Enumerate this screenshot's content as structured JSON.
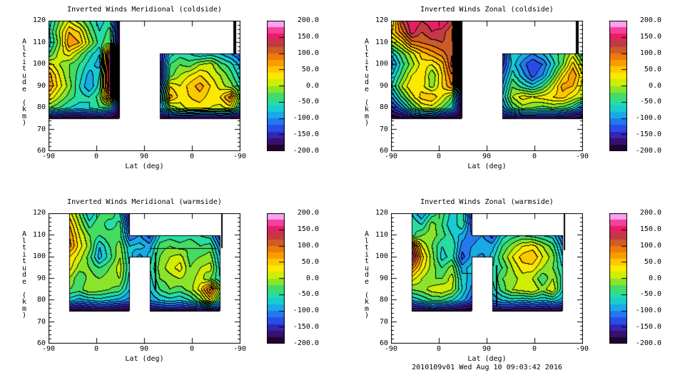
{
  "footer": "2010109v01 Wed Aug 10 09:03:42 2016",
  "axes": {
    "xlabel": "Lat (deg)",
    "ylabel": "Altitude (km)",
    "x_ticks": [
      "-90",
      "0",
      "90",
      "0",
      "-90"
    ],
    "y_ticks": [
      "120",
      "110",
      "100",
      "90",
      "80",
      "70",
      "60"
    ],
    "y_range_km": [
      60,
      120
    ]
  },
  "colorbar": {
    "labels": [
      "200.0",
      "150.0",
      "100.0",
      "50.0",
      "0.0",
      "-50.0",
      "-100.0",
      "-150.0",
      "-200.0"
    ],
    "label_values": [
      200,
      150,
      100,
      50,
      0,
      -50,
      -100,
      -150,
      -200
    ],
    "tick_values": [
      150,
      100,
      50,
      0,
      -50,
      -100,
      -150
    ],
    "min": -200,
    "max": 200,
    "band_step": 20
  },
  "palette": [
    "#200430",
    "#381070",
    "#3226b4",
    "#2a4ce6",
    "#2478ee",
    "#18aae6",
    "#18ccd2",
    "#28dca2",
    "#44dc62",
    "#8ce42a",
    "#d0ee04",
    "#fce800",
    "#fcc800",
    "#fa9c00",
    "#ee7a08",
    "#cc5c28",
    "#c23a44",
    "#e62064",
    "#f6409e",
    "#f8a4ee"
  ],
  "grid_alts_km": [
    120,
    115,
    110,
    105,
    100,
    95,
    90,
    85,
    80,
    77,
    75
  ],
  "chart_data": [
    {
      "type": "heatmap",
      "title": "Inverted Winds Meridional (coldside)",
      "xlabel": "Lat (deg)",
      "ylabel": "Altitude (km)",
      "x_cols": 20,
      "values": [
        [
          -70,
          -20,
          20,
          -10,
          -40,
          -70,
          -50,
          -200,
          null,
          null,
          null,
          null,
          null,
          null,
          null,
          null,
          null,
          null,
          null,
          -190
        ],
        [
          -60,
          0,
          60,
          40,
          -20,
          -60,
          -30,
          -200,
          null,
          null,
          null,
          null,
          null,
          null,
          null,
          null,
          null,
          null,
          null,
          -190
        ],
        [
          -70,
          -10,
          80,
          60,
          0,
          -50,
          -20,
          -200,
          null,
          null,
          null,
          null,
          null,
          null,
          null,
          null,
          null,
          null,
          null,
          -190
        ],
        [
          -40,
          10,
          30,
          -10,
          -50,
          -80,
          140,
          -200,
          null,
          null,
          null,
          -160,
          -70,
          -50,
          -60,
          -80,
          -70,
          -80,
          -100,
          -120
        ],
        [
          30,
          0,
          -20,
          -40,
          -70,
          -90,
          160,
          -200,
          null,
          null,
          null,
          -170,
          -40,
          -20,
          -30,
          0,
          10,
          -30,
          -50,
          -90
        ],
        [
          70,
          20,
          -20,
          -50,
          -90,
          -60,
          160,
          -200,
          null,
          null,
          null,
          -180,
          -30,
          0,
          20,
          40,
          20,
          0,
          -30,
          -70
        ],
        [
          80,
          30,
          -10,
          -60,
          -100,
          -50,
          150,
          -200,
          null,
          null,
          null,
          -150,
          40,
          20,
          50,
          70,
          40,
          10,
          -10,
          -50
        ],
        [
          40,
          0,
          -30,
          -50,
          -60,
          -30,
          100,
          -200,
          null,
          null,
          null,
          -120,
          70,
          30,
          40,
          50,
          30,
          40,
          90,
          -30
        ],
        [
          -20,
          -40,
          -60,
          -70,
          -60,
          -40,
          -50,
          -190,
          null,
          null,
          null,
          -100,
          -20,
          10,
          30,
          30,
          20,
          10,
          30,
          -60
        ],
        [
          -120,
          -140,
          -150,
          -150,
          -140,
          -130,
          -150,
          -200,
          null,
          null,
          null,
          -150,
          -120,
          -110,
          -110,
          -120,
          -120,
          -110,
          -120,
          -150
        ],
        [
          -185,
          -190,
          -195,
          -195,
          -190,
          -185,
          -190,
          -200,
          null,
          null,
          null,
          -190,
          -185,
          -185,
          -185,
          -185,
          -185,
          -185,
          -185,
          -190
        ]
      ],
      "marks": [
        {
          "t": "v",
          "x": 0.973,
          "a1": 120,
          "a2": 105,
          "w": 4
        }
      ]
    },
    {
      "type": "heatmap",
      "title": "Inverted Winds Zonal (coldside)",
      "xlabel": "Lat (deg)",
      "ylabel": "Altitude (km)",
      "x_cols": 20,
      "values": [
        [
          20,
          120,
          160,
          140,
          150,
          160,
          130,
          -200,
          null,
          null,
          null,
          null,
          null,
          null,
          null,
          null,
          null,
          null,
          null,
          -190
        ],
        [
          40,
          90,
          150,
          120,
          140,
          130,
          100,
          -200,
          null,
          null,
          null,
          null,
          null,
          null,
          null,
          null,
          null,
          null,
          null,
          -190
        ],
        [
          -10,
          30,
          90,
          100,
          110,
          120,
          110,
          -200,
          null,
          null,
          null,
          null,
          null,
          null,
          null,
          null,
          null,
          null,
          null,
          -190
        ],
        [
          -70,
          -30,
          10,
          50,
          70,
          90,
          120,
          -200,
          null,
          null,
          null,
          -170,
          -60,
          -80,
          -100,
          -80,
          -50,
          -30,
          10,
          -50
        ],
        [
          -110,
          -50,
          -10,
          30,
          20,
          50,
          130,
          -200,
          null,
          null,
          null,
          -150,
          -70,
          -110,
          -140,
          -120,
          -70,
          -20,
          50,
          -10
        ],
        [
          -80,
          -30,
          20,
          40,
          -20,
          40,
          100,
          -200,
          null,
          null,
          null,
          -120,
          -50,
          -90,
          -130,
          -100,
          -40,
          30,
          80,
          20
        ],
        [
          -60,
          0,
          40,
          30,
          -10,
          40,
          80,
          -200,
          null,
          null,
          null,
          -100,
          -20,
          -50,
          -70,
          -40,
          10,
          70,
          60,
          10
        ],
        [
          -100,
          -40,
          10,
          50,
          60,
          20,
          -20,
          -200,
          null,
          null,
          null,
          -80,
          0,
          30,
          20,
          30,
          40,
          50,
          20,
          0
        ],
        [
          -150,
          -100,
          -40,
          0,
          10,
          -20,
          -60,
          -200,
          null,
          null,
          null,
          -110,
          -40,
          -10,
          -20,
          -30,
          -20,
          -30,
          -50,
          -110
        ],
        [
          -180,
          -160,
          -120,
          -100,
          -110,
          -130,
          -150,
          -200,
          null,
          null,
          null,
          -150,
          -130,
          -110,
          -110,
          -120,
          -120,
          -130,
          -150,
          -170
        ],
        [
          -190,
          -190,
          -190,
          -190,
          -190,
          -190,
          -195,
          -200,
          null,
          null,
          null,
          -190,
          -185,
          -185,
          -185,
          -185,
          -185,
          -185,
          -185,
          -190
        ]
      ],
      "marks": [
        {
          "t": "v",
          "x": 0.973,
          "a1": 120,
          "a2": 105,
          "w": 4
        }
      ]
    },
    {
      "type": "heatmap",
      "title": "Inverted Winds Meridional (warmside)",
      "xlabel": "Lat (deg)",
      "ylabel": "Altitude (km)",
      "x_cols": 20,
      "values": [
        [
          null,
          null,
          30,
          -20,
          -80,
          -40,
          -20,
          -60,
          -160,
          null,
          null,
          null,
          null,
          null,
          null,
          null,
          null,
          null,
          null,
          null
        ],
        [
          null,
          null,
          60,
          0,
          -50,
          -20,
          -60,
          -30,
          -150,
          null,
          null,
          null,
          null,
          null,
          null,
          null,
          null,
          null,
          null,
          null
        ],
        [
          null,
          null,
          80,
          20,
          -20,
          -40,
          -20,
          -30,
          -120,
          -100,
          -130,
          -60,
          -50,
          -60,
          -50,
          -60,
          -70,
          -140,
          null,
          null
        ],
        [
          null,
          null,
          90,
          30,
          -10,
          -80,
          -40,
          -10,
          -80,
          -70,
          -90,
          -30,
          -20,
          -30,
          -20,
          -40,
          -30,
          -100,
          null,
          null
        ],
        [
          null,
          null,
          40,
          10,
          -30,
          -90,
          -50,
          0,
          -70,
          -110,
          -70,
          -20,
          0,
          10,
          -30,
          -20,
          -10,
          -80,
          null,
          null
        ],
        [
          null,
          null,
          30,
          -10,
          -20,
          -40,
          -20,
          10,
          -60,
          null,
          -60,
          -10,
          10,
          30,
          -20,
          0,
          10,
          -70,
          null,
          null
        ],
        [
          null,
          null,
          0,
          -40,
          -10,
          -20,
          -10,
          0,
          -70,
          null,
          -70,
          -20,
          -10,
          0,
          -10,
          10,
          -20,
          -60,
          null,
          null
        ],
        [
          null,
          null,
          -20,
          -30,
          0,
          -10,
          -20,
          -30,
          -80,
          null,
          -80,
          -40,
          -20,
          -30,
          -10,
          30,
          110,
          -10,
          null,
          null
        ],
        [
          null,
          null,
          -70,
          -90,
          -80,
          -70,
          -80,
          -90,
          -110,
          null,
          -100,
          -80,
          -70,
          -80,
          -60,
          -20,
          40,
          -60,
          null,
          null
        ],
        [
          null,
          null,
          -150,
          -160,
          -150,
          -140,
          -150,
          -160,
          -170,
          null,
          -150,
          -140,
          -130,
          -140,
          -130,
          -120,
          -90,
          -130,
          null,
          null
        ],
        [
          null,
          null,
          -190,
          -195,
          -190,
          -190,
          -190,
          -190,
          -195,
          null,
          -190,
          -185,
          -185,
          -185,
          -185,
          -185,
          -180,
          -190,
          null,
          null
        ]
      ],
      "marks": [
        {
          "t": "v",
          "x": 0.905,
          "a1": 120,
          "a2": 104,
          "w": 2
        },
        {
          "t": "h",
          "alt": 104,
          "x1": 0.53,
          "x2": 0.88,
          "w": 1
        },
        {
          "t": "v",
          "x": 0.56,
          "a1": 102,
          "a2": 84,
          "w": 2
        }
      ]
    },
    {
      "type": "heatmap",
      "title": "Inverted Winds Zonal (warmside)",
      "xlabel": "Lat (deg)",
      "ylabel": "Altitude (km)",
      "x_cols": 20,
      "values": [
        [
          null,
          null,
          -60,
          -100,
          -50,
          -30,
          -70,
          -50,
          -150,
          null,
          null,
          null,
          null,
          null,
          null,
          null,
          null,
          null,
          null,
          null
        ],
        [
          null,
          null,
          -40,
          -60,
          -10,
          -40,
          -80,
          -40,
          -140,
          null,
          null,
          null,
          null,
          null,
          null,
          null,
          null,
          null,
          null,
          null
        ],
        [
          null,
          null,
          -50,
          -20,
          -10,
          -30,
          -60,
          -90,
          -120,
          -100,
          -130,
          -70,
          -50,
          -40,
          -50,
          -60,
          -70,
          -130,
          null,
          null
        ],
        [
          null,
          null,
          130,
          20,
          -20,
          -60,
          -40,
          -110,
          -100,
          -80,
          -90,
          -40,
          -10,
          20,
          30,
          0,
          -30,
          -100,
          null,
          null
        ],
        [
          null,
          null,
          165,
          50,
          -10,
          -70,
          -50,
          -130,
          -90,
          -110,
          -70,
          -20,
          20,
          50,
          60,
          20,
          -10,
          -80,
          null,
          null
        ],
        [
          null,
          null,
          90,
          30,
          -10,
          -40,
          -10,
          -90,
          -70,
          null,
          -60,
          -40,
          0,
          30,
          30,
          0,
          -20,
          -60,
          null,
          null
        ],
        [
          null,
          null,
          30,
          0,
          -20,
          -20,
          10,
          -70,
          -90,
          null,
          -60,
          -20,
          -10,
          10,
          0,
          -40,
          0,
          -50,
          null,
          null
        ],
        [
          null,
          null,
          -20,
          -10,
          10,
          20,
          0,
          -60,
          -110,
          null,
          -70,
          -30,
          0,
          10,
          20,
          -10,
          20,
          -60,
          null,
          null
        ],
        [
          null,
          null,
          -80,
          -60,
          -40,
          -40,
          -60,
          -90,
          -130,
          null,
          -100,
          -80,
          -70,
          -80,
          -70,
          -80,
          -70,
          -90,
          null,
          null
        ],
        [
          null,
          null,
          -150,
          -140,
          -120,
          -130,
          -140,
          -160,
          -180,
          null,
          -150,
          -140,
          -140,
          -150,
          -140,
          -150,
          -140,
          -160,
          null,
          null
        ],
        [
          null,
          null,
          -190,
          -190,
          -185,
          -190,
          -190,
          -195,
          -195,
          null,
          -190,
          -185,
          -185,
          -190,
          -185,
          -190,
          -185,
          -190,
          null,
          null
        ]
      ],
      "marks": [
        {
          "t": "v",
          "x": 0.905,
          "a1": 120,
          "a2": 103,
          "w": 2
        },
        {
          "t": "v",
          "x": 0.553,
          "a1": 96,
          "a2": 77,
          "w": 2
        }
      ]
    }
  ]
}
